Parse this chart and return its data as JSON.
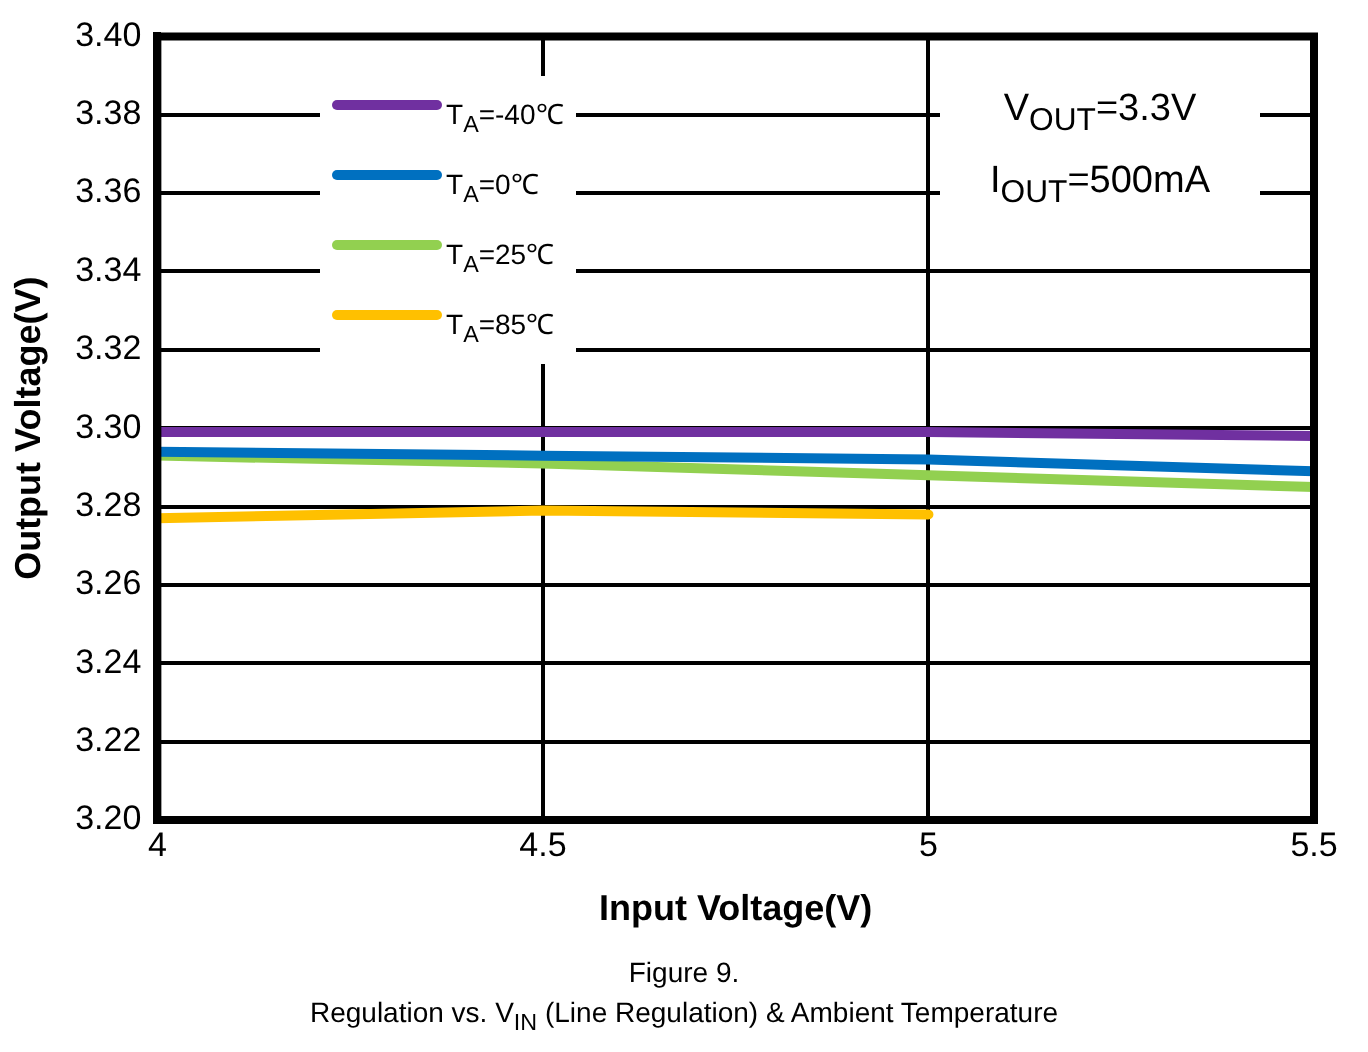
{
  "chart_data": {
    "type": "line",
    "xlabel": "Input Voltage(V)",
    "ylabel": "Output Voltage(V)",
    "x": [
      4,
      4.5,
      5,
      5.5
    ],
    "series": [
      {
        "name": "T$_{A}$=-40℃",
        "color": "#7030a0",
        "values": [
          3.299,
          3.299,
          3.299,
          3.298
        ]
      },
      {
        "name": "T$_{A}$=0℃",
        "color": "#0070c0",
        "values": [
          3.294,
          3.293,
          3.292,
          3.289
        ]
      },
      {
        "name": "T$_{A}$=25℃",
        "color": "#92d050",
        "values": [
          3.293,
          3.291,
          3.288,
          3.285
        ]
      },
      {
        "name": "T$_{A}$=85℃",
        "color": "#ffc000",
        "values": [
          3.277,
          3.279,
          3.278,
          null
        ]
      }
    ],
    "xlim": [
      4,
      5.5
    ],
    "xticks": [
      4,
      4.5,
      5,
      5.5
    ],
    "ylim": [
      3.2,
      3.4
    ],
    "yticks": [
      {
        "value": 3.2,
        "label": "3.20"
      },
      {
        "value": 3.22,
        "label": "3.22"
      },
      {
        "value": 3.24,
        "label": "3.24"
      },
      {
        "value": 3.26,
        "label": "3.26"
      },
      {
        "value": 3.28,
        "label": "3.28"
      },
      {
        "value": 3.3,
        "label": "3.30"
      },
      {
        "value": 3.32,
        "label": "3.32"
      },
      {
        "value": 3.34,
        "label": "3.34"
      },
      {
        "value": 3.36,
        "label": "3.36"
      },
      {
        "value": 3.38,
        "label": "3.38"
      },
      {
        "value": 3.4,
        "label": "3.40"
      }
    ],
    "grid": true,
    "legend": "top left",
    "marker": "none",
    "line_style": "solid",
    "annotations": [
      "V$_{OUT}$=3.3V",
      "I$_{OUT}$=500mA",
      "Figure 9.",
      "Regulation vs. V$_{IN}$ (Line Regulation) & Ambient Temperature"
    ]
  }
}
